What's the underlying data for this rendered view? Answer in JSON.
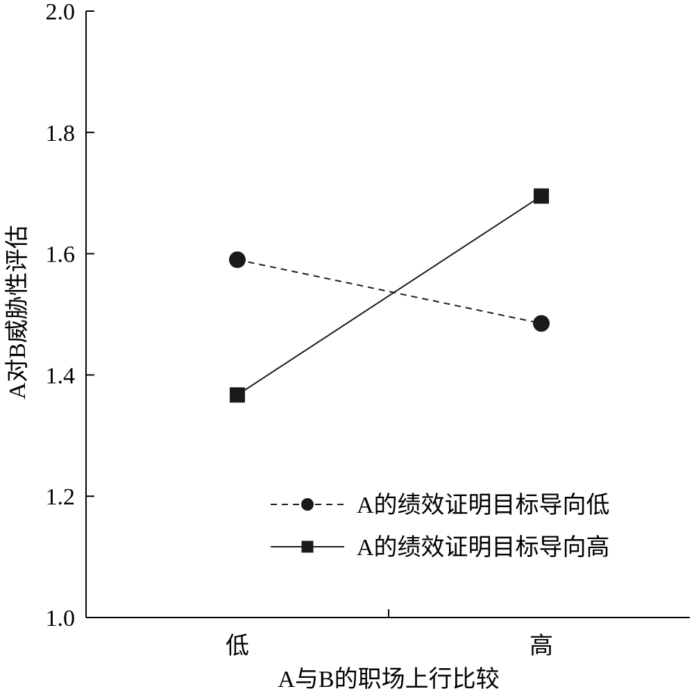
{
  "chart_data": {
    "type": "line",
    "categories": [
      "低",
      "高"
    ],
    "xlabel": "A与B的职场上行比较",
    "ylabel": "A对B威胁性评估",
    "ylim": [
      1.0,
      2.0
    ],
    "yticks": [
      "1.0",
      "1.2",
      "1.4",
      "1.6",
      "1.8",
      "2.0"
    ],
    "ytick_values": [
      1.0,
      1.2,
      1.4,
      1.6,
      1.8,
      2.0
    ],
    "grid": false,
    "legend_position": "lower-right",
    "series": [
      {
        "name": "A的绩效证明目标导向低",
        "values": [
          1.59,
          1.485
        ],
        "marker": "circle",
        "line_style": "dashed",
        "color": "#1a1a1a"
      },
      {
        "name": "A的绩效证明目标导向高",
        "values": [
          1.367,
          1.695
        ],
        "marker": "square",
        "line_style": "solid",
        "color": "#1a1a1a"
      }
    ]
  }
}
